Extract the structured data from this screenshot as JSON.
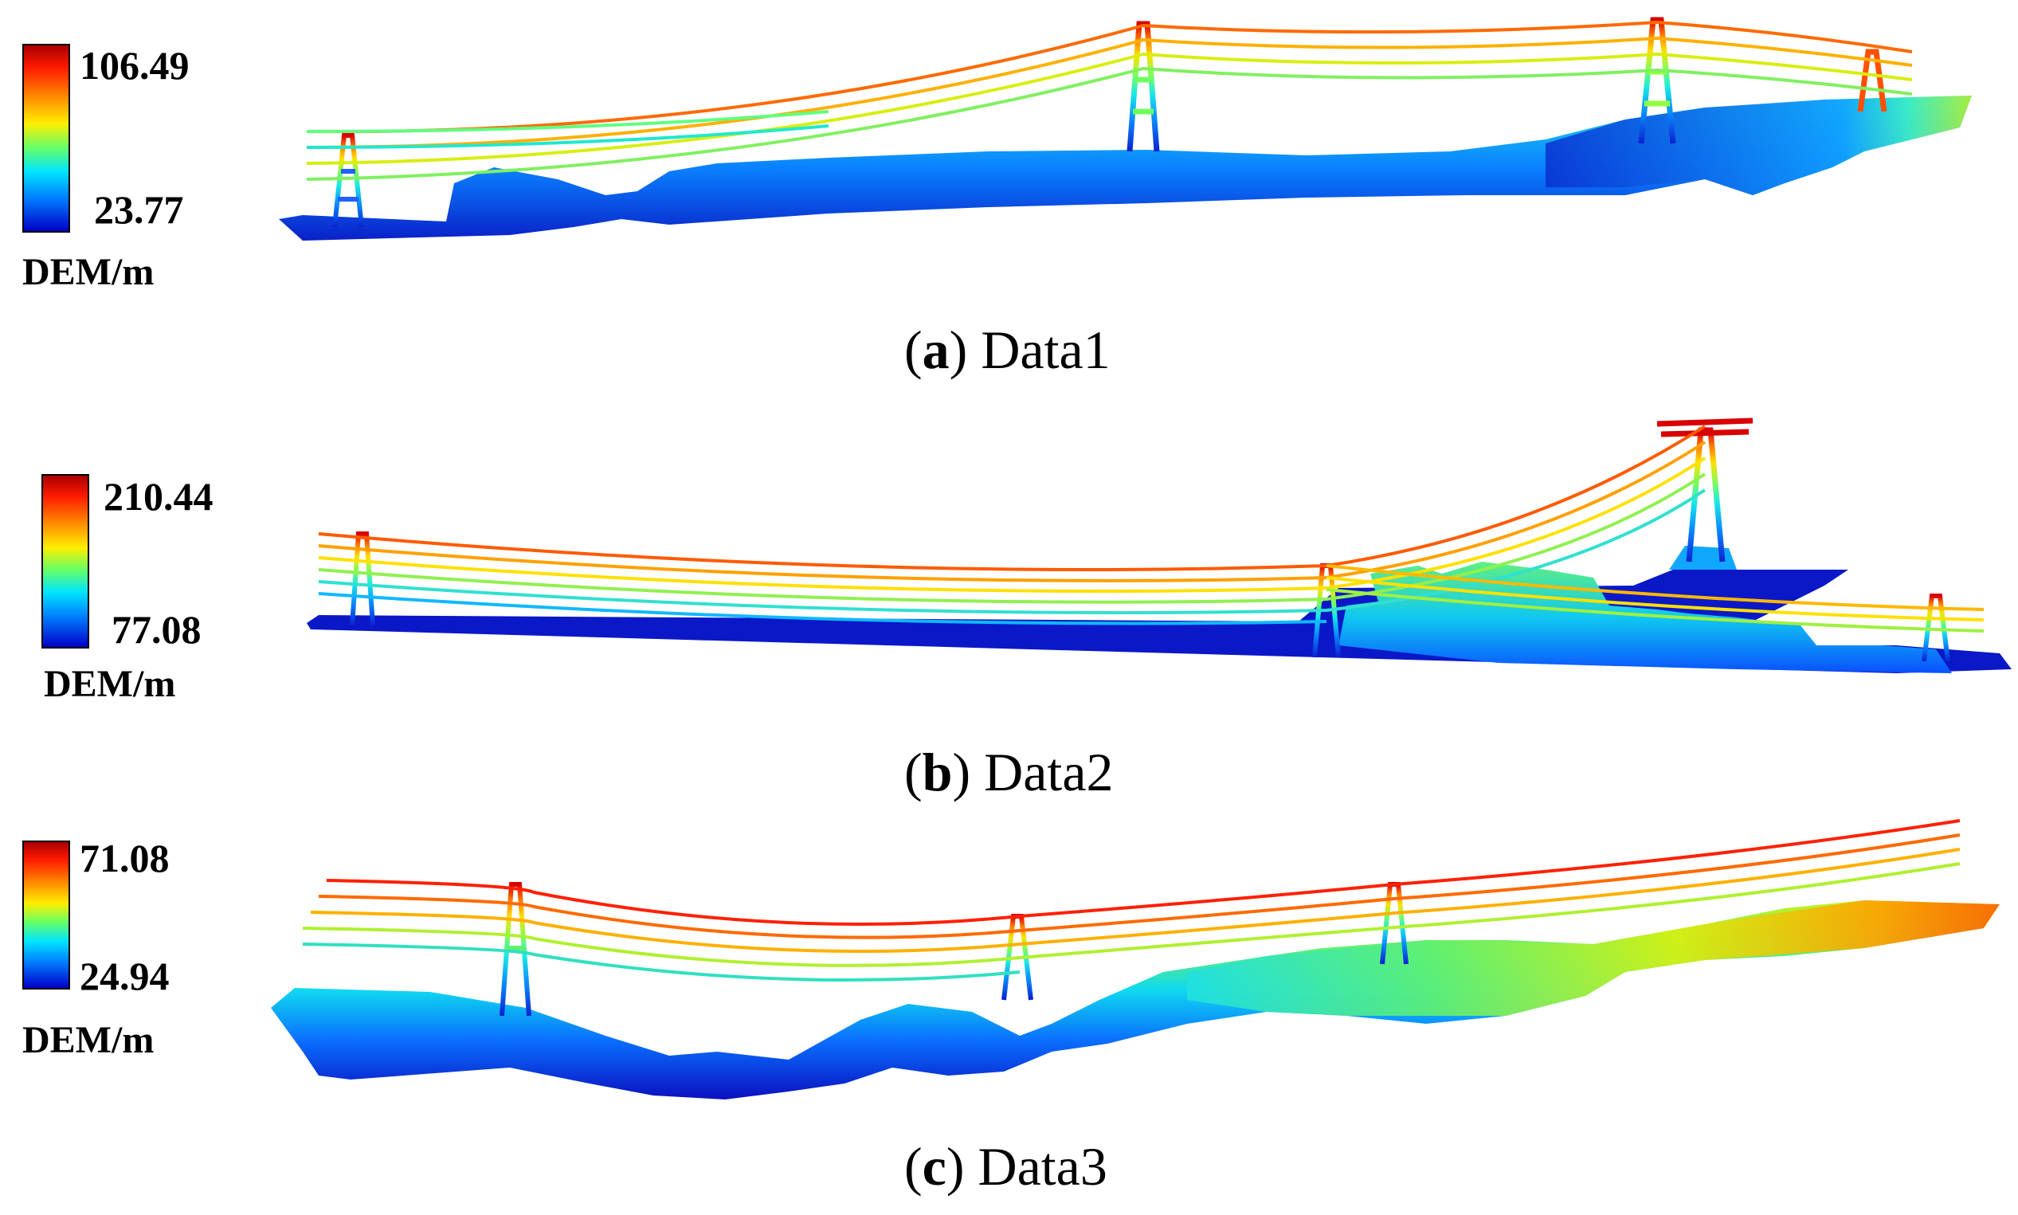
{
  "panels": [
    {
      "id": "a",
      "colorbar": {
        "max": "106.49",
        "min": "23.77",
        "unit": "DEM/m"
      },
      "caption": {
        "letter": "a",
        "name": "Data1"
      }
    },
    {
      "id": "b",
      "colorbar": {
        "max": "210.44",
        "min": "77.08",
        "unit": "DEM/m"
      },
      "caption": {
        "letter": "b",
        "name": "Data2"
      }
    },
    {
      "id": "c",
      "colorbar": {
        "max": "71.08",
        "min": "24.94",
        "unit": "DEM/m"
      },
      "caption": {
        "letter": "c",
        "name": "Data3"
      }
    }
  ],
  "colors": {
    "dem_gradient": [
      "#0000c8",
      "#0080ff",
      "#00e5ff",
      "#66ff66",
      "#ffee00",
      "#ff8c00",
      "#ff1a00",
      "#a80000"
    ],
    "background": "#ffffff"
  }
}
